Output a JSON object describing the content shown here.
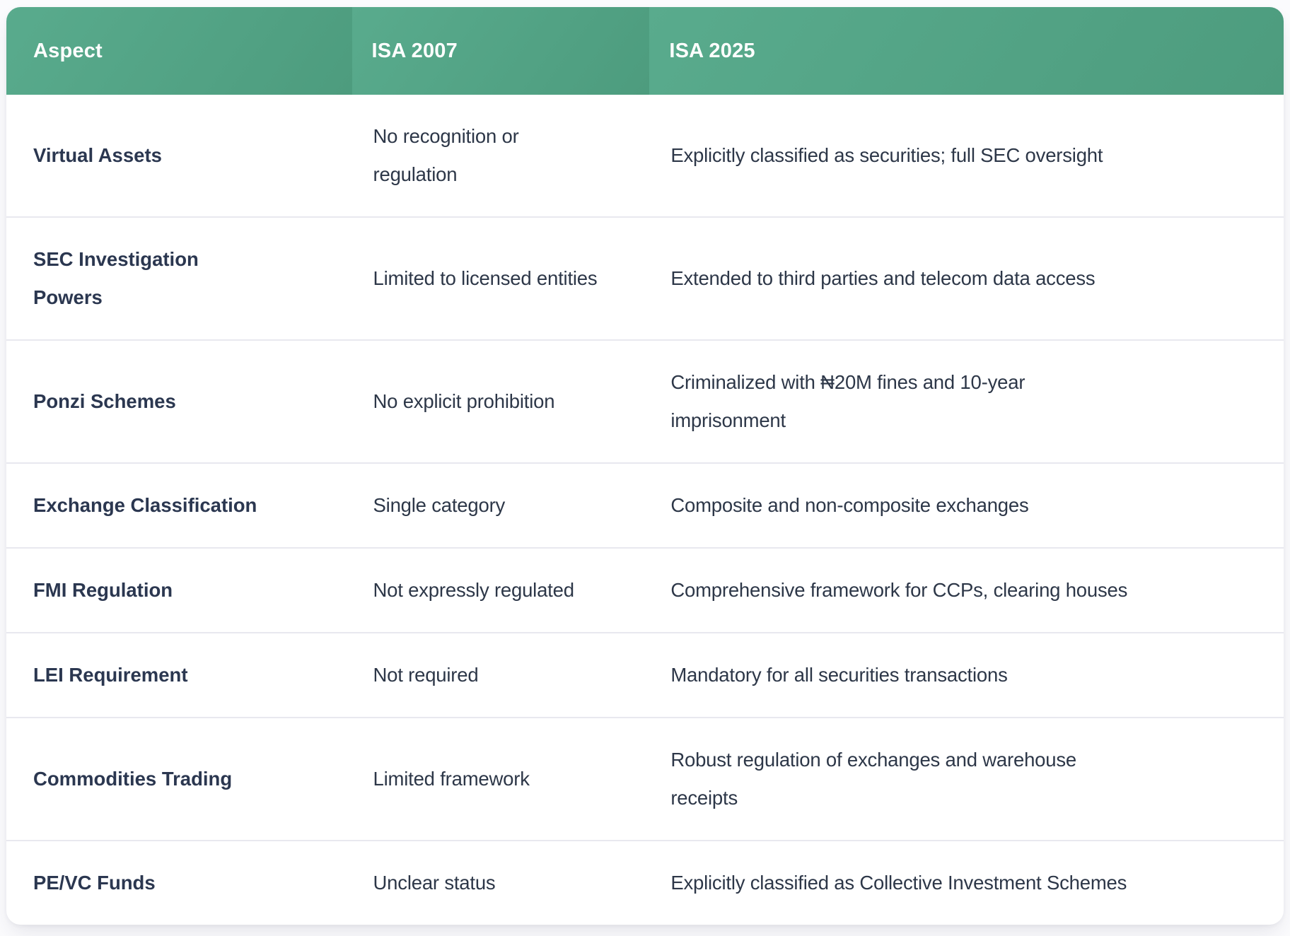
{
  "table": {
    "columns": [
      {
        "key": "aspect",
        "label": "Aspect"
      },
      {
        "key": "isa2007",
        "label": "ISA 2007"
      },
      {
        "key": "isa2025",
        "label": "ISA 2025"
      }
    ],
    "rows": [
      {
        "aspect": "Virtual Assets",
        "isa2007": "No recognition or\nregulation",
        "isa2025": "Explicitly classified as securities; full SEC oversight"
      },
      {
        "aspect": "SEC Investigation\nPowers",
        "isa2007": "Limited to licensed entities",
        "isa2025": "Extended to third parties and telecom data access"
      },
      {
        "aspect": "Ponzi Schemes",
        "isa2007": "No explicit prohibition",
        "isa2025": "Criminalized with ₦20M fines and 10-year\nimprisonment"
      },
      {
        "aspect": "Exchange Classification",
        "isa2007": "Single category",
        "isa2025": "Composite and non-composite exchanges"
      },
      {
        "aspect": "FMI Regulation",
        "isa2007": "Not expressly regulated",
        "isa2025": "Comprehensive framework for CCPs, clearing houses"
      },
      {
        "aspect": "LEI Requirement",
        "isa2007": "Not required",
        "isa2025": "Mandatory for all securities transactions"
      },
      {
        "aspect": "Commodities Trading",
        "isa2007": "Limited framework",
        "isa2025": "Robust regulation of exchanges and warehouse\nreceipts"
      },
      {
        "aspect": "PE/VC Funds",
        "isa2007": "Unclear status",
        "isa2025": "Explicitly classified as Collective Investment Schemes"
      }
    ],
    "colors": {
      "header_bg_start": "#59ab8d",
      "header_bg_end": "#4d9c7e",
      "header_text": "#ffffff",
      "body_text": "#2d3748",
      "divider": "#e8e8ef",
      "card_bg": "#ffffff",
      "page_bg": "#fbfbfd"
    }
  }
}
